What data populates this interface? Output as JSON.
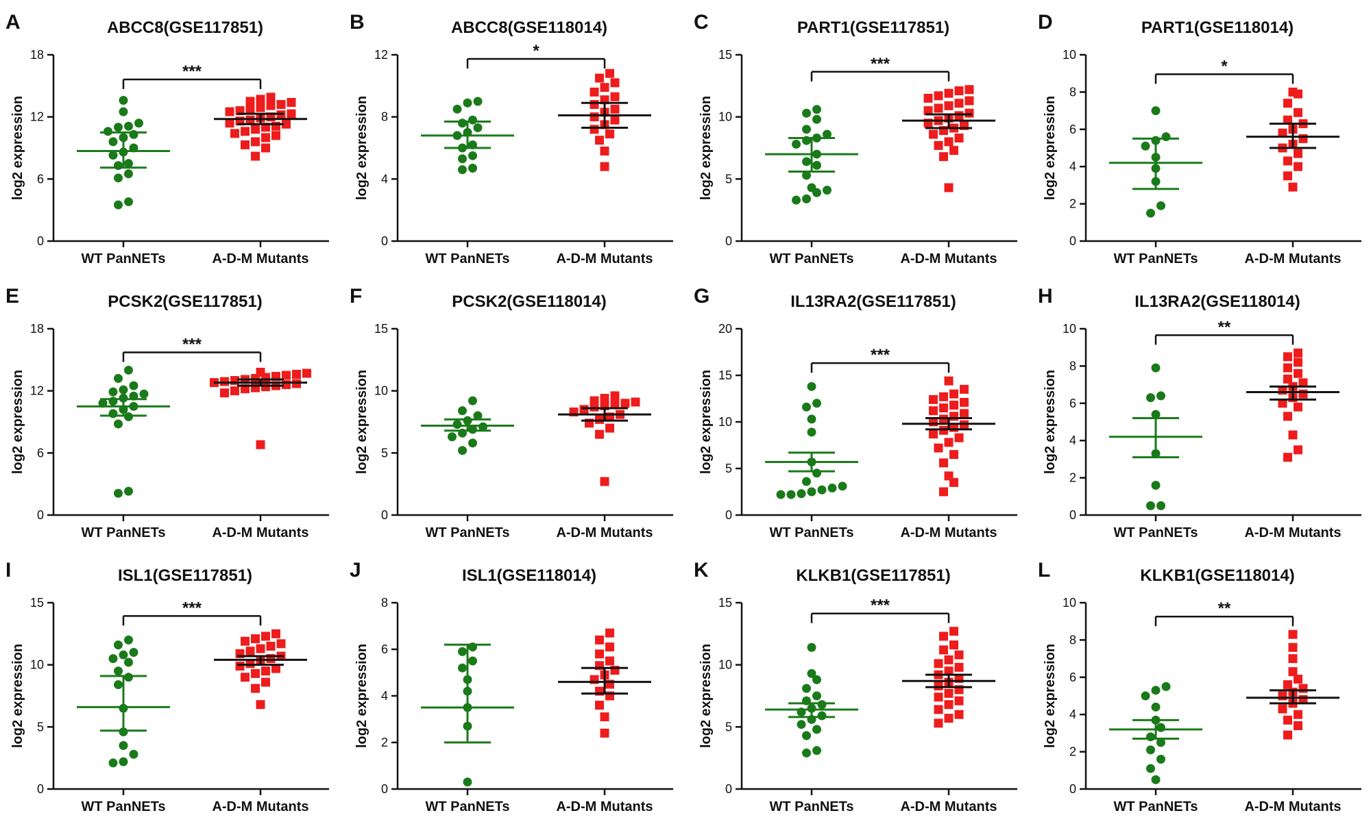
{
  "colors": {
    "wt": "#1a7a1a",
    "mut": "#ee1c1c",
    "axis": "#111111"
  },
  "chart_data": [
    {
      "panel": "A",
      "type": "scatter",
      "title": "ABCC8(GSE117851)",
      "ylabel": "log2 expression",
      "ylim": [
        0,
        18
      ],
      "yticks": [
        0,
        6,
        12,
        18
      ],
      "categories": [
        "WT PanNETs",
        "A-D-M Mutants"
      ],
      "significance": "***",
      "series": [
        {
          "name": "WT PanNETs",
          "mean": 8.7,
          "err": [
            7.1,
            10.5
          ],
          "values": [
            3.5,
            3.8,
            6.1,
            6.5,
            7.3,
            7.5,
            8.3,
            8.6,
            9.0,
            9.6,
            10.0,
            10.3,
            10.6,
            11.0,
            11.1,
            11.4,
            12.5,
            13.6
          ]
        },
        {
          "name": "A-D-M Mutants",
          "mean": 11.8,
          "err": [
            11.3,
            12.3
          ],
          "values": [
            8.2,
            9.0,
            9.3,
            9.6,
            10.0,
            10.2,
            10.4,
            10.6,
            10.8,
            11.0,
            11.1,
            11.3,
            11.4,
            11.6,
            11.7,
            11.9,
            12.0,
            12.2,
            12.3,
            12.5,
            12.6,
            12.8,
            12.9,
            13.1,
            13.2,
            13.4,
            13.5,
            13.7,
            13.9
          ]
        }
      ]
    },
    {
      "panel": "B",
      "type": "scatter",
      "title": "ABCC8(GSE118014)",
      "ylabel": "log2 expression",
      "ylim": [
        0,
        12
      ],
      "yticks": [
        0,
        4,
        8,
        12
      ],
      "categories": [
        "WT PanNETs",
        "A-D-M Mutants"
      ],
      "significance": "*",
      "series": [
        {
          "name": "WT PanNETs",
          "mean": 6.8,
          "err": [
            6.0,
            7.7
          ],
          "values": [
            4.6,
            4.7,
            5.3,
            5.5,
            6.0,
            6.2,
            6.8,
            7.0,
            7.3,
            7.6,
            7.8,
            8.5,
            8.9,
            9.0
          ]
        },
        {
          "name": "A-D-M Mutants",
          "mean": 8.1,
          "err": [
            7.3,
            8.9
          ],
          "values": [
            4.8,
            5.8,
            6.5,
            6.9,
            7.2,
            7.5,
            7.8,
            8.0,
            8.3,
            8.5,
            8.8,
            9.1,
            9.3,
            9.6,
            9.9,
            10.2,
            10.5,
            10.8
          ]
        }
      ]
    },
    {
      "panel": "C",
      "type": "scatter",
      "title": "PART1(GSE117851)",
      "ylabel": "log2 expression",
      "ylim": [
        0,
        15
      ],
      "yticks": [
        0,
        5,
        10,
        15
      ],
      "categories": [
        "WT PanNETs",
        "A-D-M Mutants"
      ],
      "significance": "***",
      "series": [
        {
          "name": "WT PanNETs",
          "mean": 7.0,
          "err": [
            5.6,
            8.3
          ],
          "values": [
            3.3,
            3.4,
            3.9,
            4.1,
            4.3,
            5.3,
            6.1,
            6.4,
            7.0,
            7.8,
            8.1,
            8.3,
            8.6,
            9.0,
            9.8,
            10.3,
            10.6
          ]
        },
        {
          "name": "A-D-M Mutants",
          "mean": 9.7,
          "err": [
            9.1,
            10.2
          ],
          "values": [
            4.3,
            6.8,
            7.3,
            7.7,
            8.0,
            8.3,
            8.6,
            8.9,
            9.1,
            9.3,
            9.5,
            9.7,
            9.9,
            10.1,
            10.3,
            10.5,
            10.7,
            10.9,
            11.1,
            11.3,
            11.5,
            11.7,
            11.9,
            12.1,
            12.2
          ]
        }
      ]
    },
    {
      "panel": "D",
      "type": "scatter",
      "title": "PART1(GSE118014)",
      "ylabel": "log2 expression",
      "ylim": [
        0,
        10
      ],
      "yticks": [
        0,
        2,
        4,
        6,
        8,
        10
      ],
      "categories": [
        "WT PanNETs",
        "A-D-M Mutants"
      ],
      "significance": "*",
      "series": [
        {
          "name": "WT PanNETs",
          "mean": 4.2,
          "err": [
            2.8,
            5.5
          ],
          "values": [
            1.5,
            1.9,
            3.2,
            3.9,
            4.5,
            5.1,
            5.4,
            5.6,
            7.0
          ]
        },
        {
          "name": "A-D-M Mutants",
          "mean": 5.6,
          "err": [
            5.0,
            6.3
          ],
          "values": [
            2.9,
            3.5,
            4.0,
            4.3,
            4.7,
            5.0,
            5.2,
            5.5,
            5.8,
            6.0,
            6.3,
            6.5,
            6.9,
            7.4,
            7.9,
            8.0
          ]
        }
      ]
    },
    {
      "panel": "E",
      "type": "scatter",
      "title": "PCSK2(GSE117851)",
      "ylabel": "log2 expression",
      "ylim": [
        0,
        18
      ],
      "yticks": [
        0,
        6,
        12,
        18
      ],
      "categories": [
        "WT PanNETs",
        "A-D-M Mutants"
      ],
      "significance": "***",
      "series": [
        {
          "name": "WT PanNETs",
          "mean": 10.5,
          "err": [
            9.6,
            11.2
          ],
          "values": [
            2.1,
            2.3,
            8.8,
            9.5,
            9.8,
            10.2,
            10.5,
            10.8,
            11.0,
            11.3,
            11.5,
            11.7,
            11.9,
            12.1,
            12.5,
            13.2,
            14.0
          ]
        },
        {
          "name": "A-D-M Mutants",
          "mean": 12.8,
          "err": [
            12.5,
            13.1
          ],
          "values": [
            6.8,
            11.8,
            12.0,
            12.2,
            12.3,
            12.4,
            12.5,
            12.6,
            12.7,
            12.8,
            12.9,
            13.0,
            13.1,
            13.2,
            13.3,
            13.4,
            13.5,
            13.6,
            13.7,
            13.8
          ]
        }
      ]
    },
    {
      "panel": "F",
      "type": "scatter",
      "title": "PCSK2(GSE118014)",
      "ylabel": "log2 expression",
      "ylim": [
        0,
        15
      ],
      "yticks": [
        0,
        5,
        10,
        15
      ],
      "categories": [
        "WT PanNETs",
        "A-D-M Mutants"
      ],
      "significance": "",
      "series": [
        {
          "name": "WT PanNETs",
          "mean": 7.2,
          "err": [
            6.8,
            7.7
          ],
          "values": [
            5.2,
            5.8,
            6.3,
            6.6,
            6.9,
            7.1,
            7.3,
            7.6,
            8.0,
            8.4,
            9.2
          ]
        },
        {
          "name": "A-D-M Mutants",
          "mean": 8.1,
          "err": [
            7.6,
            8.6
          ],
          "values": [
            2.7,
            6.5,
            7.0,
            7.4,
            7.7,
            7.9,
            8.1,
            8.3,
            8.5,
            8.7,
            8.8,
            8.9,
            9.0,
            9.1,
            9.2,
            9.4,
            9.6
          ]
        }
      ]
    },
    {
      "panel": "G",
      "type": "scatter",
      "title": "IL13RA2(GSE117851)",
      "ylabel": "log2 expression",
      "ylim": [
        0,
        20
      ],
      "yticks": [
        0,
        5,
        10,
        15,
        20
      ],
      "categories": [
        "WT PanNETs",
        "A-D-M Mutants"
      ],
      "significance": "***",
      "series": [
        {
          "name": "WT PanNETs",
          "mean": 5.7,
          "err": [
            4.7,
            6.7
          ],
          "values": [
            2.2,
            2.2,
            2.3,
            2.5,
            2.7,
            2.9,
            3.1,
            3.6,
            4.5,
            5.7,
            8.9,
            10.3,
            11.6,
            12.0,
            13.8
          ]
        },
        {
          "name": "A-D-M Mutants",
          "mean": 9.8,
          "err": [
            9.2,
            10.4
          ],
          "values": [
            2.5,
            3.5,
            4.2,
            5.6,
            6.5,
            7.2,
            7.8,
            8.3,
            8.7,
            9.1,
            9.4,
            9.7,
            10.0,
            10.3,
            10.6,
            10.9,
            11.2,
            11.5,
            11.8,
            12.1,
            12.4,
            12.7,
            13.0,
            13.5,
            14.4
          ]
        }
      ]
    },
    {
      "panel": "H",
      "type": "scatter",
      "title": "IL13RA2(GSE118014)",
      "ylabel": "log2 expression",
      "ylim": [
        0,
        10
      ],
      "yticks": [
        0,
        2,
        4,
        6,
        8,
        10
      ],
      "categories": [
        "WT PanNETs",
        "A-D-M Mutants"
      ],
      "significance": "**",
      "series": [
        {
          "name": "WT PanNETs",
          "mean": 4.2,
          "err": [
            3.1,
            5.2
          ],
          "values": [
            0.5,
            0.5,
            1.6,
            3.3,
            5.4,
            6.3,
            6.4,
            7.9
          ]
        },
        {
          "name": "A-D-M Mutants",
          "mean": 6.6,
          "err": [
            6.2,
            6.9
          ],
          "values": [
            3.1,
            3.5,
            4.3,
            5.3,
            5.8,
            6.0,
            6.3,
            6.5,
            6.7,
            6.9,
            7.1,
            7.3,
            7.6,
            7.9,
            8.2,
            8.5,
            8.7
          ]
        }
      ]
    },
    {
      "panel": "I",
      "type": "scatter",
      "title": "ISL1(GSE117851)",
      "ylabel": "log2 expression",
      "ylim": [
        0,
        15
      ],
      "yticks": [
        0,
        5,
        10,
        15
      ],
      "categories": [
        "WT PanNETs",
        "A-D-M Mutants"
      ],
      "significance": "***",
      "series": [
        {
          "name": "WT PanNETs",
          "mean": 6.6,
          "err": [
            4.7,
            9.1
          ],
          "values": [
            2.1,
            2.2,
            2.8,
            3.5,
            4.6,
            6.5,
            8.4,
            9.0,
            9.5,
            10.2,
            10.5,
            10.8,
            11.0,
            11.6,
            12.0
          ]
        },
        {
          "name": "A-D-M Mutants",
          "mean": 10.4,
          "err": [
            10.0,
            10.7
          ],
          "values": [
            6.8,
            8.1,
            8.6,
            9.0,
            9.3,
            9.5,
            9.7,
            9.9,
            10.1,
            10.3,
            10.5,
            10.7,
            10.9,
            11.1,
            11.3,
            11.5,
            11.7,
            11.9,
            12.1,
            12.3,
            12.5
          ]
        }
      ]
    },
    {
      "panel": "J",
      "type": "scatter",
      "title": "ISL1(GSE118014)",
      "ylabel": "log2 expression",
      "ylim": [
        0,
        8
      ],
      "yticks": [
        0,
        2,
        4,
        6,
        8
      ],
      "categories": [
        "WT PanNETs",
        "A-D-M Mutants"
      ],
      "significance": "",
      "series": [
        {
          "name": "WT PanNETs",
          "mean": 3.5,
          "err": [
            2.0,
            6.2
          ],
          "values": [
            0.3,
            2.7,
            3.5,
            4.2,
            4.7,
            5.2,
            5.5,
            5.9,
            6.1
          ]
        },
        {
          "name": "A-D-M Mutants",
          "mean": 4.6,
          "err": [
            4.1,
            5.2
          ],
          "values": [
            2.4,
            3.1,
            3.6,
            4.0,
            4.2,
            4.5,
            4.7,
            4.9,
            5.1,
            5.3,
            5.5,
            5.8,
            6.1,
            6.4,
            6.7
          ]
        }
      ]
    },
    {
      "panel": "K",
      "type": "scatter",
      "title": "KLKB1(GSE117851)",
      "ylabel": "log2 expression",
      "ylim": [
        0,
        15
      ],
      "yticks": [
        0,
        5,
        10,
        15
      ],
      "categories": [
        "WT PanNETs",
        "A-D-M Mutants"
      ],
      "significance": "***",
      "series": [
        {
          "name": "WT PanNETs",
          "mean": 6.4,
          "err": [
            5.8,
            6.9
          ],
          "values": [
            2.9,
            3.1,
            4.3,
            4.8,
            5.2,
            5.6,
            5.9,
            6.2,
            6.5,
            6.8,
            7.1,
            7.5,
            8.1,
            8.8,
            9.3,
            11.4
          ]
        },
        {
          "name": "A-D-M Mutants",
          "mean": 8.7,
          "err": [
            8.2,
            9.2
          ],
          "values": [
            5.3,
            5.7,
            6.0,
            6.4,
            6.8,
            7.1,
            7.4,
            7.7,
            8.0,
            8.3,
            8.6,
            8.9,
            9.2,
            9.5,
            9.8,
            10.1,
            10.4,
            10.8,
            11.2,
            11.6,
            12.3,
            12.7
          ]
        }
      ]
    },
    {
      "panel": "L",
      "type": "scatter",
      "title": "KLKB1(GSE118014)",
      "ylabel": "log2 expression",
      "ylim": [
        0,
        10
      ],
      "yticks": [
        0,
        2,
        4,
        6,
        8,
        10
      ],
      "categories": [
        "WT PanNETs",
        "A-D-M Mutants"
      ],
      "significance": "**",
      "series": [
        {
          "name": "WT PanNETs",
          "mean": 3.2,
          "err": [
            2.7,
            3.7
          ],
          "values": [
            0.5,
            1.1,
            1.6,
            2.1,
            2.5,
            2.8,
            3.3,
            3.7,
            4.4,
            5.0,
            5.3,
            5.5
          ]
        },
        {
          "name": "A-D-M Mutants",
          "mean": 4.9,
          "err": [
            4.6,
            5.3
          ],
          "values": [
            2.9,
            3.4,
            3.7,
            4.0,
            4.3,
            4.6,
            4.8,
            5.0,
            5.2,
            5.4,
            5.6,
            5.9,
            6.3,
            7.0,
            7.6,
            8.3
          ]
        }
      ]
    }
  ]
}
